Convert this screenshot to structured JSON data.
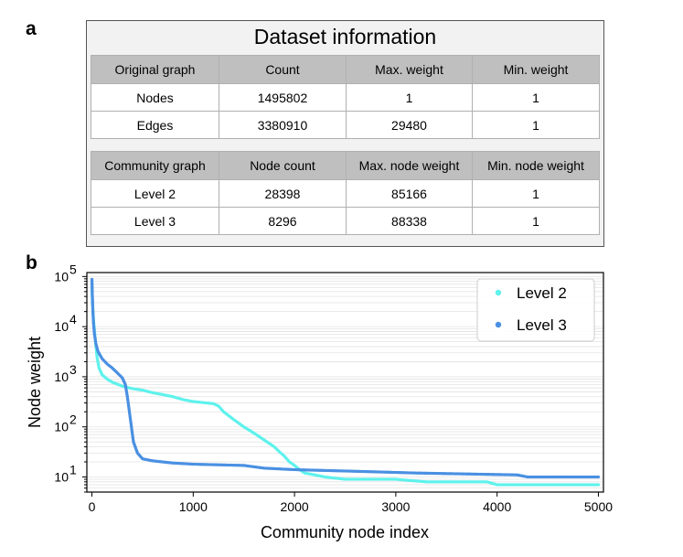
{
  "panel_labels": {
    "a": "a",
    "b": "b"
  },
  "table": {
    "title": "Dataset information",
    "original": {
      "headers": [
        "Original graph",
        "Count",
        "Max. weight",
        "Min. weight"
      ],
      "rows": [
        [
          "Nodes",
          "1495802",
          "1",
          "1"
        ],
        [
          "Edges",
          "3380910",
          "29480",
          "1"
        ]
      ]
    },
    "community": {
      "headers": [
        "Community graph",
        "Node count",
        "Max. node weight",
        "Min. node weight"
      ],
      "rows": [
        [
          "Level 2",
          "28398",
          "85166",
          "1"
        ],
        [
          "Level 3",
          "8296",
          "88338",
          "1"
        ]
      ]
    }
  },
  "chart_data": {
    "type": "scatter",
    "xlabel": "Community node index",
    "ylabel": "Node weight",
    "xlim": [
      -50,
      5050
    ],
    "ylim": [
      5,
      120000
    ],
    "yscale": "log",
    "xticks": [
      0,
      1000,
      2000,
      3000,
      4000,
      5000
    ],
    "ytick_labels": [
      {
        "base": "10",
        "exp": "1"
      },
      {
        "base": "10",
        "exp": "2"
      },
      {
        "base": "10",
        "exp": "3"
      },
      {
        "base": "10",
        "exp": "4"
      },
      {
        "base": "10",
        "exp": "5"
      }
    ],
    "grid": "horizontal minor",
    "legend_position": "top-right",
    "series": [
      {
        "name": "Level 2",
        "color": "#5ff2ec",
        "points": [
          [
            0,
            85166
          ],
          [
            3,
            40000
          ],
          [
            10,
            20000
          ],
          [
            20,
            11000
          ],
          [
            35,
            5000
          ],
          [
            50,
            2500
          ],
          [
            70,
            1500
          ],
          [
            100,
            1100
          ],
          [
            150,
            900
          ],
          [
            200,
            780
          ],
          [
            300,
            650
          ],
          [
            400,
            580
          ],
          [
            500,
            540
          ],
          [
            600,
            480
          ],
          [
            700,
            440
          ],
          [
            800,
            400
          ],
          [
            900,
            350
          ],
          [
            1000,
            320
          ],
          [
            1100,
            305
          ],
          [
            1200,
            290
          ],
          [
            1250,
            260
          ],
          [
            1300,
            200
          ],
          [
            1400,
            140
          ],
          [
            1500,
            100
          ],
          [
            1600,
            75
          ],
          [
            1700,
            55
          ],
          [
            1800,
            40
          ],
          [
            1850,
            32
          ],
          [
            1900,
            26
          ],
          [
            1950,
            20
          ],
          [
            2000,
            17
          ],
          [
            2050,
            14
          ],
          [
            2100,
            12
          ],
          [
            2200,
            11
          ],
          [
            2300,
            10
          ],
          [
            2500,
            9
          ],
          [
            3000,
            9
          ],
          [
            3300,
            8
          ],
          [
            3900,
            8
          ],
          [
            4000,
            7
          ],
          [
            5000,
            7
          ]
        ]
      },
      {
        "name": "Level 3",
        "color": "#4a90e2",
        "points": [
          [
            0,
            88338
          ],
          [
            3,
            50000
          ],
          [
            8,
            25000
          ],
          [
            15,
            12000
          ],
          [
            25,
            7000
          ],
          [
            40,
            4500
          ],
          [
            60,
            3200
          ],
          [
            100,
            2300
          ],
          [
            150,
            1800
          ],
          [
            200,
            1500
          ],
          [
            250,
            1200
          ],
          [
            300,
            950
          ],
          [
            330,
            700
          ],
          [
            350,
            400
          ],
          [
            370,
            200
          ],
          [
            390,
            100
          ],
          [
            410,
            50
          ],
          [
            450,
            30
          ],
          [
            500,
            23
          ],
          [
            600,
            21
          ],
          [
            800,
            19
          ],
          [
            1000,
            18
          ],
          [
            1500,
            17
          ],
          [
            1700,
            15
          ],
          [
            2000,
            14
          ],
          [
            2600,
            13
          ],
          [
            3200,
            12
          ],
          [
            4200,
            11
          ],
          [
            4300,
            10
          ],
          [
            5000,
            10
          ]
        ]
      }
    ]
  }
}
